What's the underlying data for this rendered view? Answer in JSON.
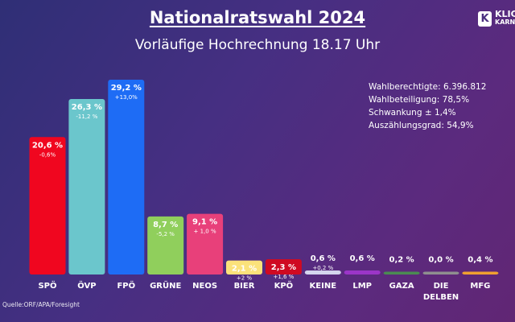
{
  "title": "Nationalratswahl 2024",
  "subtitle": "Vorläufige Hochrechnung 18.17 Uhr",
  "logo": {
    "letter": "K",
    "line1": "KLIC",
    "line2": "KARNT"
  },
  "stats": [
    "Wahlberechtigte: 6.396.812",
    "Wahlbeteiligung: 78,5%",
    "Schwankung ± 1,4%",
    "Auszählungsgrad: 54,9%"
  ],
  "source": "Quelle:ORF/APA/Foresight",
  "chart_data": {
    "type": "bar",
    "categories": [
      "SPÖ",
      "ÖVP",
      "FPÖ",
      "GRÜNE",
      "NEOS",
      "BIER",
      "KPÖ",
      "KEINE",
      "LMP",
      "GAZA",
      "DIE DELBEN",
      "MFG"
    ],
    "values": [
      20.6,
      26.3,
      29.2,
      8.7,
      9.1,
      2.1,
      2.3,
      0.6,
      0.6,
      0.2,
      0.0,
      0.4
    ],
    "value_labels": [
      "20,6 %",
      "26,3 %",
      "29,2 %",
      "8,7 %",
      "9,1 %",
      "2,1 %",
      "2,3 %",
      "0,6 %",
      "0,6 %",
      "0,2 %",
      "0,0 %",
      "0,4 %"
    ],
    "change_labels": [
      "-0,6%",
      "-11,2 %",
      "+13,0%",
      "-5,2 %",
      "+ 1,0 %",
      "+2 %",
      "+1,6 %",
      "+0,2 %",
      "",
      "",
      "",
      ""
    ],
    "colors": [
      "#f0061f",
      "#6bc6cc",
      "#1e6cf5",
      "#90cf5c",
      "#e8407a",
      "#fbe27a",
      "#cf0a22",
      "#d4d4ee",
      "#9b35c8",
      "#4b8b52",
      "#8f8f8f",
      "#f0a030"
    ],
    "ylim": [
      0,
      30
    ],
    "grid": false
  }
}
